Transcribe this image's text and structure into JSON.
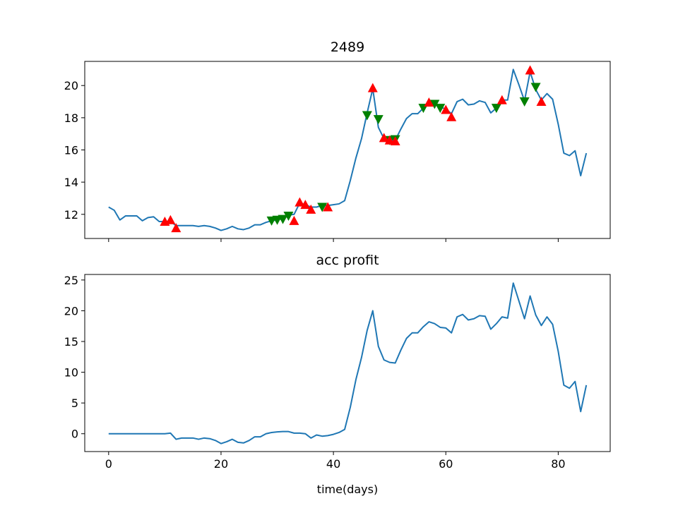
{
  "chart_data": [
    {
      "type": "line",
      "title": "2489",
      "xlabel": "",
      "ylabel": "",
      "xlim": [
        -4.25,
        89.25
      ],
      "ylim": [
        10.5,
        21.5
      ],
      "xticks": [
        0,
        20,
        40,
        60,
        80
      ],
      "yticks": [
        12,
        14,
        16,
        18,
        20
      ],
      "yticklabels": [
        "12",
        "14",
        "16",
        "18",
        "20"
      ],
      "show_xticklabels": false,
      "grid": false,
      "colors": {
        "line": "#1f77b4",
        "buy": "#ff0000",
        "sell": "#008000"
      },
      "series": [
        {
          "x": [
            0,
            1,
            2,
            3,
            4,
            5,
            6,
            7,
            8,
            9,
            10,
            11,
            12,
            13,
            14,
            15,
            16,
            17,
            18,
            19,
            20,
            21,
            22,
            23,
            24,
            25,
            26,
            27,
            28,
            29,
            30,
            31,
            32,
            33,
            34,
            35,
            36,
            37,
            38,
            39,
            40,
            41,
            42,
            43,
            44,
            45,
            46,
            47,
            48,
            49,
            50,
            51,
            52,
            53,
            54,
            55,
            56,
            57,
            58,
            59,
            60,
            61,
            62,
            63,
            64,
            65,
            66,
            67,
            68,
            69,
            70,
            71,
            72,
            73,
            74,
            75,
            76,
            77,
            78,
            79,
            80,
            81,
            82,
            83,
            84,
            85
          ],
          "values": [
            12.45,
            12.25,
            11.65,
            11.9,
            11.9,
            11.9,
            11.6,
            11.8,
            11.85,
            11.55,
            11.55,
            11.55,
            11.3,
            11.3,
            11.3,
            11.3,
            11.25,
            11.3,
            11.25,
            11.15,
            11.0,
            11.1,
            11.25,
            11.1,
            11.05,
            11.15,
            11.35,
            11.35,
            11.5,
            11.6,
            11.65,
            11.75,
            11.95,
            12.0,
            12.7,
            12.6,
            12.45,
            12.45,
            12.55,
            12.55,
            12.6,
            12.65,
            12.85,
            14.1,
            15.5,
            16.7,
            18.3,
            19.8,
            17.4,
            16.7,
            16.6,
            16.6,
            17.3,
            17.95,
            18.25,
            18.25,
            18.6,
            19.0,
            18.95,
            18.65,
            18.55,
            18.25,
            19.0,
            19.15,
            18.8,
            18.85,
            19.05,
            18.95,
            18.3,
            18.6,
            19.1,
            19.1,
            21.0,
            20.05,
            19.05,
            20.85,
            19.75,
            19.1,
            19.5,
            19.15,
            17.6,
            15.8,
            15.65,
            15.95,
            14.4,
            15.8
          ]
        }
      ],
      "markers": {
        "buy": [
          {
            "x": 10,
            "y": 11.55
          },
          {
            "x": 11,
            "y": 11.65
          },
          {
            "x": 12,
            "y": 11.15
          },
          {
            "x": 33,
            "y": 11.6
          },
          {
            "x": 34,
            "y": 12.75
          },
          {
            "x": 35,
            "y": 12.6
          },
          {
            "x": 36,
            "y": 12.3
          },
          {
            "x": 39,
            "y": 12.45
          },
          {
            "x": 47,
            "y": 19.85
          },
          {
            "x": 49,
            "y": 16.75
          },
          {
            "x": 50,
            "y": 16.6
          },
          {
            "x": 51,
            "y": 16.55
          },
          {
            "x": 57,
            "y": 18.95
          },
          {
            "x": 60,
            "y": 18.5
          },
          {
            "x": 61,
            "y": 18.05
          },
          {
            "x": 70,
            "y": 19.1
          },
          {
            "x": 75,
            "y": 20.95
          },
          {
            "x": 77,
            "y": 19.0
          }
        ],
        "sell": [
          {
            "x": 29,
            "y": 11.6
          },
          {
            "x": 30,
            "y": 11.65
          },
          {
            "x": 31,
            "y": 11.7
          },
          {
            "x": 32,
            "y": 11.9
          },
          {
            "x": 38,
            "y": 12.45
          },
          {
            "x": 46,
            "y": 18.15
          },
          {
            "x": 48,
            "y": 17.9
          },
          {
            "x": 50,
            "y": 16.6
          },
          {
            "x": 51,
            "y": 16.65
          },
          {
            "x": 56,
            "y": 18.6
          },
          {
            "x": 58,
            "y": 18.85
          },
          {
            "x": 59,
            "y": 18.6
          },
          {
            "x": 69,
            "y": 18.6
          },
          {
            "x": 74,
            "y": 19.0
          },
          {
            "x": 76,
            "y": 19.9
          }
        ]
      }
    },
    {
      "type": "line",
      "title": "acc profit",
      "xlabel": "time(days)",
      "ylabel": "",
      "xlim": [
        -4.25,
        89.25
      ],
      "ylim": [
        -2.9,
        25.9
      ],
      "xticks": [
        0,
        20,
        40,
        60,
        80
      ],
      "xticklabels": [
        "0",
        "20",
        "40",
        "60",
        "80"
      ],
      "yticks": [
        0,
        5,
        10,
        15,
        20,
        25
      ],
      "yticklabels": [
        "0",
        "5",
        "10",
        "15",
        "20",
        "25"
      ],
      "show_xticklabels": true,
      "grid": false,
      "colors": {
        "line": "#1f77b4"
      },
      "series": [
        {
          "x": [
            0,
            1,
            2,
            3,
            4,
            5,
            6,
            7,
            8,
            9,
            10,
            11,
            12,
            13,
            14,
            15,
            16,
            17,
            18,
            19,
            20,
            21,
            22,
            23,
            24,
            25,
            26,
            27,
            28,
            29,
            30,
            31,
            32,
            33,
            34,
            35,
            36,
            37,
            38,
            39,
            40,
            41,
            42,
            43,
            44,
            45,
            46,
            47,
            48,
            49,
            50,
            51,
            52,
            53,
            54,
            55,
            56,
            57,
            58,
            59,
            60,
            61,
            62,
            63,
            64,
            65,
            66,
            67,
            68,
            69,
            70,
            71,
            72,
            73,
            74,
            75,
            76,
            77,
            78,
            79,
            80,
            81,
            82,
            83,
            84,
            85
          ],
          "values": [
            0,
            0,
            0,
            0,
            0,
            0,
            0,
            0,
            0,
            0,
            0,
            0.1,
            -0.9,
            -0.7,
            -0.7,
            -0.7,
            -0.9,
            -0.7,
            -0.8,
            -1.1,
            -1.6,
            -1.3,
            -0.9,
            -1.4,
            -1.5,
            -1.1,
            -0.5,
            -0.5,
            0,
            0.2,
            0.3,
            0.35,
            0.35,
            0.1,
            0.1,
            0,
            -0.7,
            -0.2,
            -0.4,
            -0.3,
            -0.1,
            0.2,
            0.7,
            4.3,
            8.8,
            12.4,
            16.8,
            20.0,
            14.2,
            12.0,
            11.6,
            11.5,
            13.6,
            15.5,
            16.4,
            16.4,
            17.4,
            18.2,
            17.9,
            17.3,
            17.2,
            16.4,
            19.0,
            19.4,
            18.5,
            18.7,
            19.2,
            19.1,
            17.0,
            17.9,
            19.0,
            18.8,
            24.5,
            21.6,
            18.7,
            22.4,
            19.3,
            17.6,
            19.0,
            17.8,
            13.4,
            7.9,
            7.4,
            8.5,
            3.6,
            7.9
          ]
        }
      ]
    }
  ]
}
